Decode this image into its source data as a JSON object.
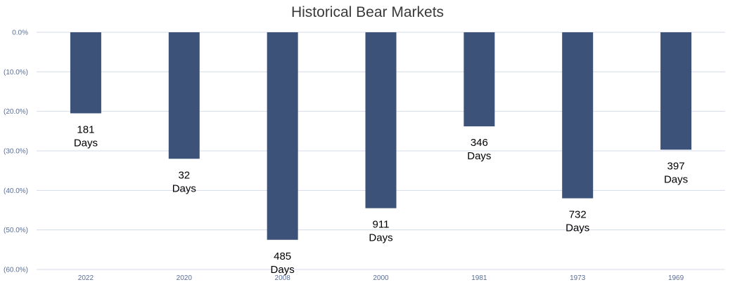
{
  "chart_data": {
    "type": "bar",
    "title": "Historical Bear Markets",
    "xlabel": "",
    "ylabel": "",
    "categories": [
      "2022",
      "2020",
      "2008",
      "2000",
      "1981",
      "1973",
      "1969"
    ],
    "values": [
      -20.5,
      -32.0,
      -52.5,
      -44.5,
      -23.8,
      -42.0,
      -29.7
    ],
    "data_labels": [
      [
        "181",
        "Days"
      ],
      [
        "32",
        "Days"
      ],
      [
        "485",
        "Days"
      ],
      [
        "911",
        "Days"
      ],
      [
        "346",
        "Days"
      ],
      [
        "732",
        "Days"
      ],
      [
        "397",
        "Days"
      ]
    ],
    "ylim": [
      -60,
      0
    ],
    "yticks": [
      0,
      -10,
      -20,
      -30,
      -40,
      -50,
      -60
    ],
    "ytick_labels": [
      "0.0%",
      "(10.0%)",
      "(20.0%)",
      "(30.0%)",
      "(40.0%)",
      "(50.0%)",
      "(60.0%)"
    ],
    "grid": true,
    "legend": "none",
    "colors": {
      "bar": "#3d5278",
      "grid": "#d5dbe8",
      "tick_text": "#5b6e96"
    }
  }
}
